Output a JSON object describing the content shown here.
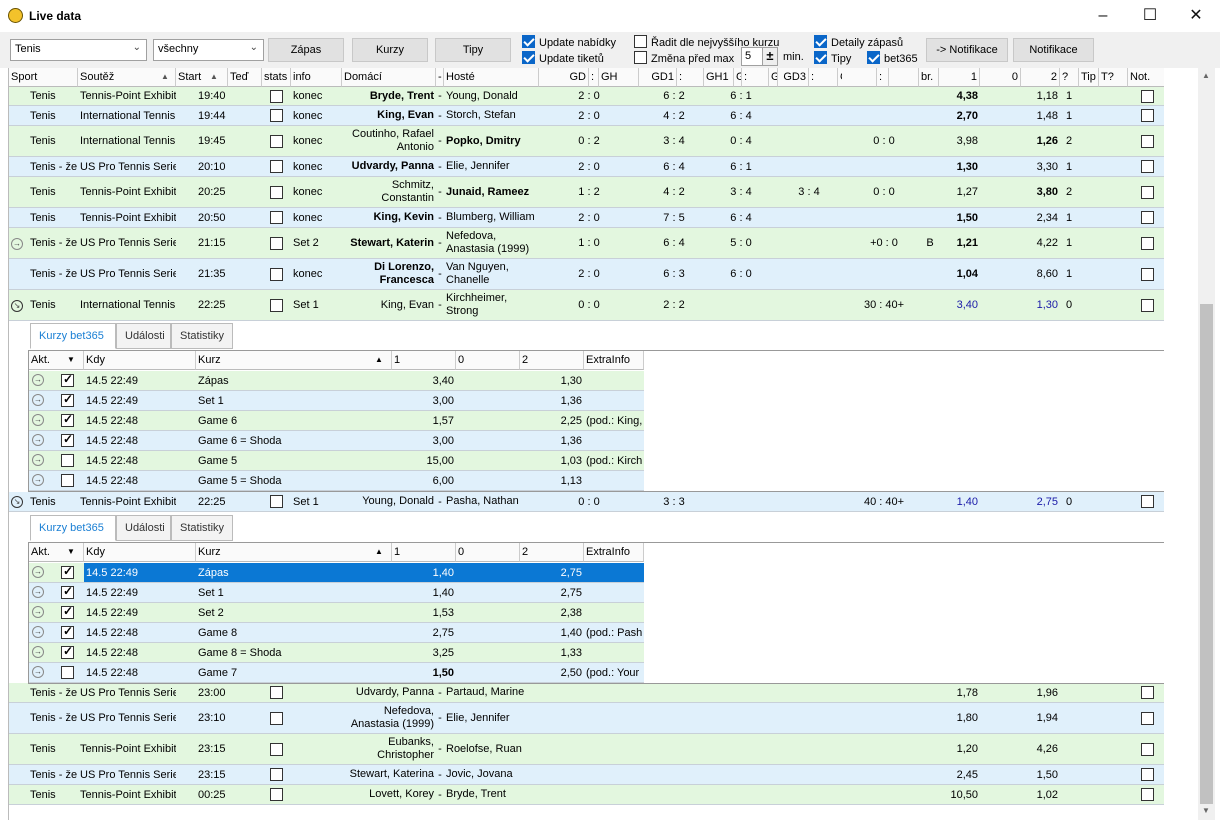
{
  "window": {
    "title": "Live data"
  },
  "toolbar": {
    "sport": "Tenis",
    "filter": "všechny",
    "btn_zapas": "Zápas",
    "btn_kurzy": "Kurzy",
    "btn_tipy": "Tipy",
    "chk": [
      {
        "label": "Update nabídky",
        "on": true
      },
      {
        "label": "Update tiketů",
        "on": true
      },
      {
        "label": "Řadit dle nejvyššího kurzu",
        "on": false
      },
      {
        "label": "Změna před max",
        "on": false
      },
      {
        "label": "Detaily zápasů",
        "on": true
      },
      {
        "label": "Tipy",
        "on": true
      },
      {
        "label": "bet365",
        "on": true
      }
    ],
    "minutes": "5",
    "min_label": "min.",
    "btn_notif_arrow": "-> Notifikace",
    "btn_notif": "Notifikace"
  },
  "columns": [
    "Sport",
    "Soutěž",
    "Start",
    "Teď",
    "stats",
    "info",
    "Domácí",
    "-",
    "Hosté",
    "GD",
    ":",
    "GH",
    "GD1",
    ":",
    "GH1",
    "GD2",
    ":",
    "GH2",
    "GD3",
    ":",
    "GH3",
    "",
    ":",
    "",
    "br.",
    "1",
    "0",
    "2",
    "?",
    "Tip",
    "T?",
    "Not."
  ],
  "matches": [
    {
      "sport": "Tenis",
      "comp": "Tennis-Point Exhibiti",
      "start": "19:40",
      "info": "konec",
      "home": "Bryde, Trent",
      "hb": true,
      "away": "Young, Donald",
      "ab": false,
      "gd": "2 : 0",
      "g1": "6 : 2",
      "g2": "6 : 1",
      "g3": "",
      "sc": "",
      "br": "",
      "o1": "4,38",
      "o1b": true,
      "o2": "1,18",
      "o2b": false,
      "q": "1"
    },
    {
      "sport": "Tenis",
      "comp": "International Tennis",
      "start": "19:44",
      "info": "konec",
      "home": "King, Evan",
      "hb": true,
      "away": "Storch, Stefan",
      "ab": false,
      "gd": "2 : 0",
      "g1": "4 : 2",
      "g2": "6 : 4",
      "g3": "",
      "sc": "",
      "br": "",
      "o1": "2,70",
      "o1b": true,
      "o2": "1,48",
      "o2b": false,
      "q": "1"
    },
    {
      "sport": "Tenis",
      "comp": "International Tennis",
      "start": "19:45",
      "info": "konec",
      "home": "Coutinho, Rafael Antonio",
      "hb": false,
      "away": "Popko, Dmitry",
      "ab": true,
      "gd": "0 : 2",
      "g1": "3 : 4",
      "g2": "0 : 4",
      "g3": "",
      "sc": "0 : 0",
      "br": "",
      "o1": "3,98",
      "o1b": false,
      "o2": "1,26",
      "o2b": true,
      "q": "2"
    },
    {
      "sport": "Tenis - že",
      "comp": "US Pro Tennis Series",
      "start": "20:10",
      "info": "konec",
      "home": "Udvardy, Panna",
      "hb": true,
      "away": "Elie, Jennifer",
      "ab": false,
      "gd": "2 : 0",
      "g1": "6 : 4",
      "g2": "6 : 1",
      "g3": "",
      "sc": "",
      "br": "",
      "o1": "1,30",
      "o1b": true,
      "o2": "3,30",
      "o2b": false,
      "q": "1"
    },
    {
      "sport": "Tenis",
      "comp": "Tennis-Point Exhibiti",
      "start": "20:25",
      "info": "konec",
      "home": "Schmitz, Constantin",
      "hb": false,
      "away": "Junaid, Rameez",
      "ab": true,
      "gd": "1 : 2",
      "g1": "4 : 2",
      "g2": "3 : 4",
      "g3": "3 : 4",
      "sc": "0 : 0",
      "br": "",
      "o1": "1,27",
      "o1b": false,
      "o2": "3,80",
      "o2b": true,
      "q": "2"
    },
    {
      "sport": "Tenis",
      "comp": "Tennis-Point Exhibiti",
      "start": "20:50",
      "info": "konec",
      "home": "King, Kevin",
      "hb": true,
      "away": "Blumberg, William",
      "ab": false,
      "gd": "2 : 0",
      "g1": "7 : 5",
      "g2": "6 : 4",
      "g3": "",
      "sc": "",
      "br": "",
      "o1": "1,50",
      "o1b": true,
      "o2": "2,34",
      "o2b": false,
      "q": "1"
    },
    {
      "sport": "Tenis - že",
      "comp": "US Pro Tennis Series",
      "start": "21:15",
      "info": "Set 2",
      "home": "Stewart, Katerin",
      "hb": true,
      "away": "Nefedova, Anastasia (1999)",
      "ab": false,
      "gd": "1 : 0",
      "g1": "6 : 4",
      "g2": "5 : 0",
      "g3": "",
      "sc": "+0 : 0",
      "br": "B",
      "o1": "1,21",
      "o1b": true,
      "o2": "4,22",
      "o2b": false,
      "q": "1"
    },
    {
      "sport": "Tenis - že",
      "comp": "US Pro Tennis Series",
      "start": "21:35",
      "info": "konec",
      "home": "Di Lorenzo, Francesca",
      "hb": true,
      "away": "Van Nguyen, Chanelle",
      "ab": false,
      "gd": "2 : 0",
      "g1": "6 : 3",
      "g2": "6 : 0",
      "g3": "",
      "sc": "",
      "br": "",
      "o1": "1,04",
      "o1b": true,
      "o2": "8,60",
      "o2b": false,
      "q": "1"
    },
    {
      "sport": "Tenis",
      "comp": "International Tennis",
      "start": "22:25",
      "info": "Set 1",
      "home": "King, Evan",
      "hb": false,
      "away": "Kirchheimer, Strong",
      "ab": false,
      "gd": "0 : 0",
      "g1": "2 : 2",
      "g2": "",
      "g3": "",
      "sc": "30 : 40+",
      "br": "",
      "o1": "3,40",
      "o1b": false,
      "o2": "1,30",
      "o2b": false,
      "q": "0"
    },
    {
      "sport": "Tenis",
      "comp": "Tennis-Point Exhibiti",
      "start": "22:25",
      "info": "Set 1",
      "home": "Young, Donald",
      "hb": false,
      "away": "Pasha, Nathan",
      "ab": false,
      "gd": "0 : 0",
      "g1": "3 : 3",
      "g2": "",
      "g3": "",
      "sc": "40 : 40+",
      "br": "",
      "o1": "1,40",
      "o1b": false,
      "o2": "2,75",
      "o2b": false,
      "q": "0"
    },
    {
      "sport": "Tenis - že",
      "comp": "US Pro Tennis Series",
      "start": "23:00",
      "info": "",
      "home": "Udvardy, Panna",
      "hb": false,
      "away": "Partaud, Marine",
      "ab": false,
      "gd": "",
      "g1": "",
      "g2": "",
      "g3": "",
      "sc": "",
      "br": "",
      "o1": "1,78",
      "o1b": false,
      "o2": "1,96",
      "o2b": false,
      "q": ""
    },
    {
      "sport": "Tenis - že",
      "comp": "US Pro Tennis Series",
      "start": "23:10",
      "info": "",
      "home": "Nefedova, Anastasia (1999)",
      "hb": false,
      "away": "Elie, Jennifer",
      "ab": false,
      "gd": "",
      "g1": "",
      "g2": "",
      "g3": "",
      "sc": "",
      "br": "",
      "o1": "1,80",
      "o1b": false,
      "o2": "1,94",
      "o2b": false,
      "q": ""
    },
    {
      "sport": "Tenis",
      "comp": "Tennis-Point Exhibiti",
      "start": "23:15",
      "info": "",
      "home": "Eubanks, Christopher",
      "hb": false,
      "away": "Roelofse, Ruan",
      "ab": false,
      "gd": "",
      "g1": "",
      "g2": "",
      "g3": "",
      "sc": "",
      "br": "",
      "o1": "1,20",
      "o1b": false,
      "o2": "4,26",
      "o2b": false,
      "q": ""
    },
    {
      "sport": "Tenis - že",
      "comp": "US Pro Tennis Series",
      "start": "23:15",
      "info": "",
      "home": "Stewart, Katerina",
      "hb": false,
      "away": "Jovic, Jovana",
      "ab": false,
      "gd": "",
      "g1": "",
      "g2": "",
      "g3": "",
      "sc": "",
      "br": "",
      "o1": "2,45",
      "o1b": false,
      "o2": "1,50",
      "o2b": false,
      "q": ""
    },
    {
      "sport": "Tenis",
      "comp": "Tennis-Point Exhibiti",
      "start": "00:25",
      "info": "",
      "home": "Lovett, Korey",
      "hb": false,
      "away": "Bryde, Trent",
      "ab": false,
      "gd": "",
      "g1": "",
      "g2": "",
      "g3": "",
      "sc": "",
      "br": "",
      "o1": "10,50",
      "o1b": false,
      "o2": "1,02",
      "o2b": false,
      "q": ""
    }
  ],
  "detail_tabs": [
    "Kurzy bet365",
    "Události",
    "Statistiky"
  ],
  "detail_columns": [
    "Akt.",
    "Kdy",
    "Kurz",
    "1",
    "0",
    "2",
    "ExtraInfo"
  ],
  "detail1": [
    {
      "chk": true,
      "kdy": "14.5 22:49",
      "kurz": "Zápas",
      "o1": "3,40",
      "o2": "1,30",
      "extra": ""
    },
    {
      "chk": true,
      "kdy": "14.5 22:49",
      "kurz": "Set 1",
      "o1": "3,00",
      "o2": "1,36",
      "extra": ""
    },
    {
      "chk": true,
      "kdy": "14.5 22:48",
      "kurz": "Game 6",
      "o1": "1,57",
      "o2": "2,25",
      "extra": "(pod.: King,"
    },
    {
      "chk": true,
      "kdy": "14.5 22:48",
      "kurz": "Game 6 = Shoda",
      "o1": "3,00",
      "o2": "1,36",
      "extra": ""
    },
    {
      "chk": false,
      "kdy": "14.5 22:48",
      "kurz": "Game 5",
      "o1": "15,00",
      "o2": "1,03",
      "extra": "(pod.: Kirch"
    },
    {
      "chk": false,
      "kdy": "14.5 22:48",
      "kurz": "Game 5 = Shoda",
      "o1": "6,00",
      "o2": "1,13",
      "extra": ""
    }
  ],
  "detail2": [
    {
      "chk": true,
      "kdy": "14.5 22:49",
      "kurz": "Zápas",
      "o1": "1,40",
      "o2": "2,75",
      "extra": "",
      "sel": true
    },
    {
      "chk": true,
      "kdy": "14.5 22:49",
      "kurz": "Set 1",
      "o1": "1,40",
      "o2": "2,75",
      "extra": ""
    },
    {
      "chk": true,
      "kdy": "14.5 22:49",
      "kurz": "Set 2",
      "o1": "1,53",
      "o2": "2,38",
      "extra": ""
    },
    {
      "chk": true,
      "kdy": "14.5 22:48",
      "kurz": "Game 8",
      "o1": "2,75",
      "o2": "1,40",
      "extra": "(pod.: Pash"
    },
    {
      "chk": true,
      "kdy": "14.5 22:48",
      "kurz": "Game 8 = Shoda",
      "o1": "3,25",
      "o2": "1,33",
      "extra": ""
    },
    {
      "chk": false,
      "kdy": "14.5 22:48",
      "kurz": "Game 7",
      "o1": "1,50",
      "o2": "2,50",
      "extra": "(pod.: Your",
      "b1": true
    }
  ]
}
